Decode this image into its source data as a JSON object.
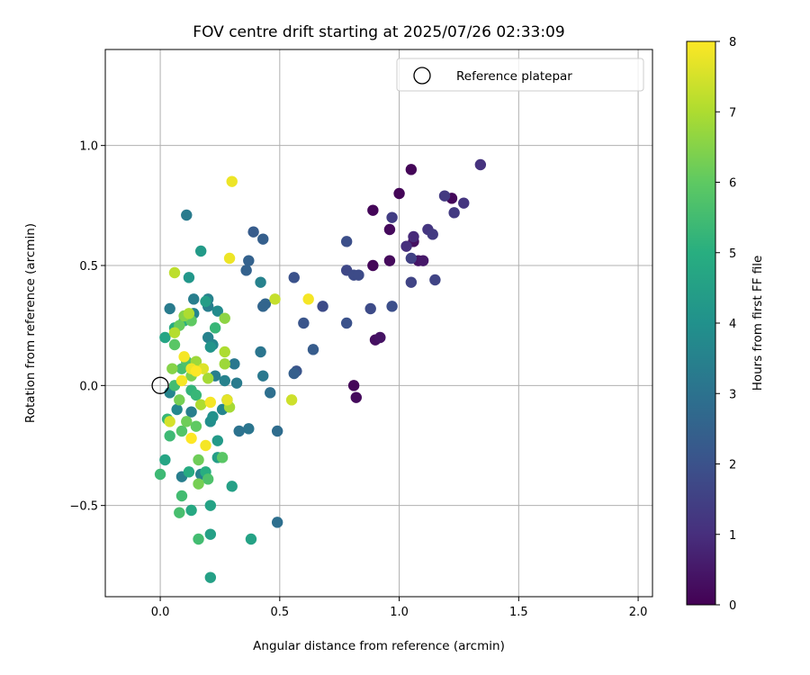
{
  "chart_data": {
    "type": "scatter",
    "title": "FOV centre drift starting at 2025/07/26 02:33:09",
    "xlabel": "Angular distance from reference (arcmin)",
    "ylabel": "Rotation from reference (arcmin)",
    "xlim": [
      -0.23,
      2.06
    ],
    "ylim": [
      -0.88,
      1.4
    ],
    "xticks": [
      0.0,
      0.5,
      1.0,
      1.5,
      2.0
    ],
    "xtick_labels": [
      "0.0",
      "0.5",
      "1.0",
      "1.5",
      "2.0"
    ],
    "yticks": [
      -0.5,
      0.0,
      0.5,
      1.0
    ],
    "ytick_labels": [
      "−0.5",
      "0.0",
      "0.5",
      "1.0"
    ],
    "grid": true,
    "legend": {
      "position": "top-right",
      "entries": [
        {
          "label": "Reference platepar",
          "marker": "hollow-circle"
        }
      ]
    },
    "reference_point": {
      "x": 0.0,
      "y": 0.0
    },
    "colorbar": {
      "label": "Hours from first FF file",
      "colormap": "viridis",
      "range": [
        0,
        8
      ],
      "ticks": [
        0,
        1,
        2,
        3,
        4,
        5,
        6,
        7,
        8
      ],
      "tick_labels": [
        "0",
        "1",
        "2",
        "3",
        "4",
        "5",
        "6",
        "7",
        "8"
      ]
    },
    "series": [
      {
        "points": [
          {
            "x": 1.05,
            "y": 0.9,
            "c": 0.1
          },
          {
            "x": 1.0,
            "y": 0.8,
            "c": 0.1
          },
          {
            "x": 0.89,
            "y": 0.73,
            "c": 0.1
          },
          {
            "x": 1.22,
            "y": 0.78,
            "c": 0.15
          },
          {
            "x": 0.96,
            "y": 0.65,
            "c": 0.2
          },
          {
            "x": 1.06,
            "y": 0.6,
            "c": 0.3
          },
          {
            "x": 0.89,
            "y": 0.5,
            "c": 0.1
          },
          {
            "x": 0.96,
            "y": 0.52,
            "c": 0.2
          },
          {
            "x": 1.08,
            "y": 0.52,
            "c": 0.4
          },
          {
            "x": 1.1,
            "y": 0.52,
            "c": 0.5
          },
          {
            "x": 0.81,
            "y": 0.0,
            "c": 0.1
          },
          {
            "x": 0.82,
            "y": -0.05,
            "c": 0.2
          },
          {
            "x": 0.9,
            "y": 0.19,
            "c": 0.3
          },
          {
            "x": 0.92,
            "y": 0.2,
            "c": 0.4
          },
          {
            "x": 1.34,
            "y": 0.92,
            "c": 1.1
          },
          {
            "x": 1.19,
            "y": 0.79,
            "c": 1.3
          },
          {
            "x": 1.27,
            "y": 0.76,
            "c": 1.2
          },
          {
            "x": 1.23,
            "y": 0.72,
            "c": 1.3
          },
          {
            "x": 0.97,
            "y": 0.7,
            "c": 1.4
          },
          {
            "x": 1.12,
            "y": 0.65,
            "c": 1.2
          },
          {
            "x": 1.14,
            "y": 0.63,
            "c": 1.3
          },
          {
            "x": 1.06,
            "y": 0.62,
            "c": 0.9
          },
          {
            "x": 1.03,
            "y": 0.58,
            "c": 1.0
          },
          {
            "x": 1.05,
            "y": 0.53,
            "c": 1.5
          },
          {
            "x": 1.15,
            "y": 0.44,
            "c": 1.6
          },
          {
            "x": 1.05,
            "y": 0.43,
            "c": 1.6
          },
          {
            "x": 0.78,
            "y": 0.6,
            "c": 1.9
          },
          {
            "x": 0.78,
            "y": 0.48,
            "c": 1.7
          },
          {
            "x": 0.81,
            "y": 0.46,
            "c": 1.8
          },
          {
            "x": 0.83,
            "y": 0.46,
            "c": 1.8
          },
          {
            "x": 0.97,
            "y": 0.33,
            "c": 1.9
          },
          {
            "x": 0.88,
            "y": 0.32,
            "c": 1.8
          },
          {
            "x": 0.78,
            "y": 0.26,
            "c": 2.0
          },
          {
            "x": 0.68,
            "y": 0.33,
            "c": 1.8
          },
          {
            "x": 0.6,
            "y": 0.26,
            "c": 2.1
          },
          {
            "x": 0.56,
            "y": 0.45,
            "c": 2.0
          },
          {
            "x": 0.64,
            "y": 0.15,
            "c": 2.3
          },
          {
            "x": 0.57,
            "y": 0.06,
            "c": 2.1
          },
          {
            "x": 0.56,
            "y": 0.05,
            "c": 2.4
          },
          {
            "x": 0.39,
            "y": 0.64,
            "c": 2.3
          },
          {
            "x": 0.43,
            "y": 0.61,
            "c": 2.4
          },
          {
            "x": 0.37,
            "y": 0.52,
            "c": 2.5
          },
          {
            "x": 0.36,
            "y": 0.48,
            "c": 2.5
          },
          {
            "x": 0.44,
            "y": 0.34,
            "c": 2.6
          },
          {
            "x": 0.43,
            "y": 0.33,
            "c": 2.6
          },
          {
            "x": 0.46,
            "y": -0.03,
            "c": 2.9
          },
          {
            "x": 0.49,
            "y": -0.19,
            "c": 2.8
          },
          {
            "x": 0.49,
            "y": -0.57,
            "c": 2.9
          },
          {
            "x": 0.42,
            "y": 0.43,
            "c": 3.5
          },
          {
            "x": 0.42,
            "y": 0.14,
            "c": 3.1
          },
          {
            "x": 0.43,
            "y": 0.04,
            "c": 3.2
          },
          {
            "x": 0.37,
            "y": -0.18,
            "c": 3.1
          },
          {
            "x": 0.33,
            "y": -0.19,
            "c": 3.0
          },
          {
            "x": 0.31,
            "y": 0.09,
            "c": 3.2
          },
          {
            "x": 0.32,
            "y": 0.01,
            "c": 3.3
          },
          {
            "x": 0.11,
            "y": 0.71,
            "c": 3.3
          },
          {
            "x": 0.04,
            "y": 0.32,
            "c": 3.3
          },
          {
            "x": 0.14,
            "y": 0.36,
            "c": 3.4
          },
          {
            "x": 0.2,
            "y": 0.36,
            "c": 3.5
          },
          {
            "x": 0.2,
            "y": 0.33,
            "c": 3.4
          },
          {
            "x": 0.14,
            "y": 0.3,
            "c": 3.6
          },
          {
            "x": 0.24,
            "y": 0.31,
            "c": 3.8
          },
          {
            "x": 0.2,
            "y": 0.2,
            "c": 3.5
          },
          {
            "x": 0.22,
            "y": 0.17,
            "c": 3.6
          },
          {
            "x": 0.23,
            "y": 0.04,
            "c": 3.4
          },
          {
            "x": 0.27,
            "y": 0.02,
            "c": 3.5
          },
          {
            "x": 0.28,
            "y": -0.06,
            "c": 3.7
          },
          {
            "x": 0.26,
            "y": -0.1,
            "c": 3.6
          },
          {
            "x": 0.13,
            "y": -0.11,
            "c": 3.4
          },
          {
            "x": 0.09,
            "y": -0.38,
            "c": 3.4
          },
          {
            "x": 0.17,
            "y": -0.37,
            "c": 3.5
          },
          {
            "x": 0.04,
            "y": -0.03,
            "c": 3.6
          },
          {
            "x": 0.07,
            "y": -0.1,
            "c": 3.7
          },
          {
            "x": 0.21,
            "y": -0.15,
            "c": 3.9
          },
          {
            "x": 0.17,
            "y": 0.56,
            "c": 4.3
          },
          {
            "x": 0.12,
            "y": 0.45,
            "c": 4.2
          },
          {
            "x": 0.19,
            "y": 0.35,
            "c": 4.4
          },
          {
            "x": 0.21,
            "y": 0.16,
            "c": 4.1
          },
          {
            "x": 0.22,
            "y": -0.13,
            "c": 4.0
          },
          {
            "x": 0.24,
            "y": -0.23,
            "c": 4.3
          },
          {
            "x": 0.24,
            "y": -0.3,
            "c": 4.4
          },
          {
            "x": 0.3,
            "y": -0.42,
            "c": 4.5
          },
          {
            "x": 0.38,
            "y": -0.64,
            "c": 4.6
          },
          {
            "x": 0.21,
            "y": -0.62,
            "c": 4.5
          },
          {
            "x": 0.21,
            "y": -0.5,
            "c": 4.6
          },
          {
            "x": 0.21,
            "y": -0.8,
            "c": 4.5
          },
          {
            "x": 0.13,
            "y": -0.52,
            "c": 4.8
          },
          {
            "x": 0.12,
            "y": -0.36,
            "c": 4.9
          },
          {
            "x": 0.19,
            "y": -0.36,
            "c": 5.0
          },
          {
            "x": 0.02,
            "y": -0.31,
            "c": 4.7
          },
          {
            "x": 0.02,
            "y": 0.2,
            "c": 4.7
          },
          {
            "x": 0.1,
            "y": 0.27,
            "c": 5.0
          },
          {
            "x": 0.06,
            "y": 0.24,
            "c": 4.9
          },
          {
            "x": 0.23,
            "y": 0.24,
            "c": 5.3
          },
          {
            "x": 0.13,
            "y": -0.02,
            "c": 5.2
          },
          {
            "x": 0.15,
            "y": -0.04,
            "c": 5.3
          },
          {
            "x": 0.0,
            "y": -0.37,
            "c": 5.4
          },
          {
            "x": 0.09,
            "y": -0.46,
            "c": 5.5
          },
          {
            "x": 0.08,
            "y": -0.53,
            "c": 5.6
          },
          {
            "x": 0.16,
            "y": -0.64,
            "c": 5.5
          },
          {
            "x": 0.2,
            "y": -0.39,
            "c": 5.7
          },
          {
            "x": 0.26,
            "y": -0.3,
            "c": 5.9
          },
          {
            "x": 0.09,
            "y": -0.19,
            "c": 5.8
          },
          {
            "x": 0.06,
            "y": 0.0,
            "c": 5.5
          },
          {
            "x": 0.09,
            "y": 0.07,
            "c": 5.6
          },
          {
            "x": 0.11,
            "y": 0.1,
            "c": 5.7
          },
          {
            "x": 0.03,
            "y": -0.14,
            "c": 5.3
          },
          {
            "x": 0.04,
            "y": -0.21,
            "c": 5.4
          },
          {
            "x": 0.06,
            "y": 0.17,
            "c": 5.9
          },
          {
            "x": 0.13,
            "y": 0.27,
            "c": 6.0
          },
          {
            "x": 0.08,
            "y": 0.25,
            "c": 6.1
          },
          {
            "x": 0.15,
            "y": -0.17,
            "c": 6.0
          },
          {
            "x": 0.11,
            "y": -0.15,
            "c": 6.2
          },
          {
            "x": 0.16,
            "y": -0.31,
            "c": 6.2
          },
          {
            "x": 0.16,
            "y": -0.41,
            "c": 6.3
          },
          {
            "x": 0.13,
            "y": 0.04,
            "c": 6.4
          },
          {
            "x": 0.05,
            "y": 0.07,
            "c": 6.5
          },
          {
            "x": 0.08,
            "y": -0.06,
            "c": 6.3
          },
          {
            "x": 0.1,
            "y": 0.29,
            "c": 6.5
          },
          {
            "x": 0.27,
            "y": 0.28,
            "c": 6.6
          },
          {
            "x": 0.27,
            "y": 0.09,
            "c": 6.8
          },
          {
            "x": 0.27,
            "y": 0.14,
            "c": 7.0
          },
          {
            "x": 0.15,
            "y": 0.1,
            "c": 6.8
          },
          {
            "x": 0.2,
            "y": 0.03,
            "c": 6.9
          },
          {
            "x": 0.29,
            "y": -0.09,
            "c": 6.9
          },
          {
            "x": 0.17,
            "y": -0.08,
            "c": 7.0
          },
          {
            "x": 0.06,
            "y": 0.47,
            "c": 7.2
          },
          {
            "x": 0.06,
            "y": 0.22,
            "c": 7.1
          },
          {
            "x": 0.12,
            "y": 0.3,
            "c": 7.0
          },
          {
            "x": 0.48,
            "y": 0.36,
            "c": 7.3
          },
          {
            "x": 0.55,
            "y": -0.06,
            "c": 7.4
          },
          {
            "x": 0.04,
            "y": -0.15,
            "c": 7.5
          },
          {
            "x": 0.18,
            "y": 0.07,
            "c": 7.6
          },
          {
            "x": 0.3,
            "y": 0.85,
            "c": 7.8
          },
          {
            "x": 0.29,
            "y": 0.53,
            "c": 7.8
          },
          {
            "x": 0.62,
            "y": 0.36,
            "c": 7.9
          },
          {
            "x": 0.1,
            "y": 0.12,
            "c": 7.9
          },
          {
            "x": 0.13,
            "y": 0.07,
            "c": 7.8
          },
          {
            "x": 0.15,
            "y": 0.06,
            "c": 8.0
          },
          {
            "x": 0.09,
            "y": 0.02,
            "c": 7.9
          },
          {
            "x": 0.21,
            "y": -0.07,
            "c": 7.9
          },
          {
            "x": 0.13,
            "y": -0.22,
            "c": 8.0
          },
          {
            "x": 0.19,
            "y": -0.25,
            "c": 7.9
          },
          {
            "x": 0.28,
            "y": -0.06,
            "c": 7.7
          }
        ]
      }
    ]
  }
}
